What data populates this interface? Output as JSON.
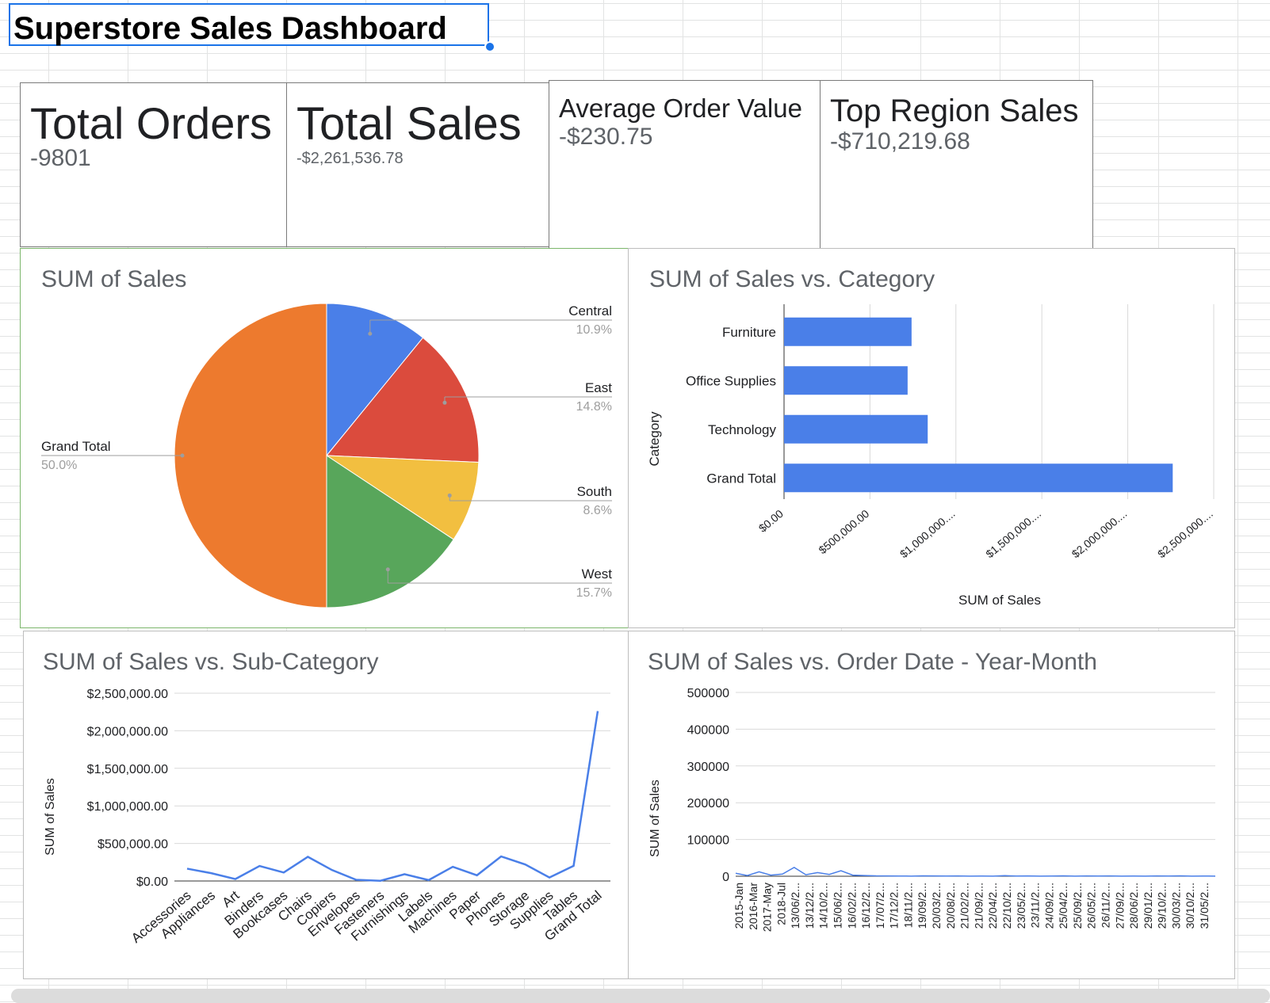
{
  "title": "Superstore Sales Dashboard",
  "kpis": [
    {
      "label": "Total Orders",
      "value": "-9801"
    },
    {
      "label": "Total Sales",
      "value": "-$2,261,536.78"
    },
    {
      "label": "Average Order Value",
      "value": "-$230.75"
    },
    {
      "label": "Top Region Sales",
      "value": "-$710,219.68"
    }
  ],
  "colors": {
    "pie": [
      "#4a7fe8",
      "#db4b3d",
      "#f2bf40",
      "#58a65b",
      "#ed7a2e"
    ],
    "bar": "#4a7fe8",
    "line": "#4a7fe8"
  },
  "chart_data": [
    {
      "type": "pie",
      "title": "SUM of Sales",
      "labels": [
        "Central",
        "East",
        "South",
        "West",
        "Grand Total"
      ],
      "values": [
        10.9,
        14.8,
        8.6,
        15.7,
        50.0
      ],
      "percent_labels": [
        "10.9%",
        "14.8%",
        "8.6%",
        "15.7%",
        "50.0%"
      ]
    },
    {
      "type": "bar",
      "orientation": "horizontal",
      "title": "SUM of Sales vs. Category",
      "categories": [
        "Furniture",
        "Office Supplies",
        "Technology",
        "Grand Total"
      ],
      "values": [
        742000,
        719000,
        836000,
        2261536.78
      ],
      "xlabel": "SUM of Sales",
      "ylabel": "Category",
      "xlim": [
        0,
        2500000
      ],
      "xticks": [
        "$0.00",
        "$500,000.00",
        "$1,000,000....",
        "$1,500,000....",
        "$2,000,000....",
        "$2,500,000...."
      ]
    },
    {
      "type": "line",
      "title": "SUM of Sales vs. Sub-Category",
      "categories": [
        "Accessories",
        "Appliances",
        "Art",
        "Binders",
        "Bookcases",
        "Chairs",
        "Copiers",
        "Envelopes",
        "Fasteners",
        "Furnishings",
        "Labels",
        "Machines",
        "Paper",
        "Phones",
        "Storage",
        "Supplies",
        "Tables",
        "Grand Total"
      ],
      "values": [
        164000,
        104000,
        26000,
        200000,
        113000,
        322000,
        146000,
        16000,
        3000,
        90000,
        12000,
        189000,
        76000,
        327000,
        220000,
        46000,
        202000,
        2261536.78
      ],
      "ylabel": "SUM of Sales",
      "ylim": [
        0,
        2500000
      ],
      "yticks": [
        "$0.00",
        "$500,000.00",
        "$1,000,000.00",
        "$1,500,000.00",
        "$2,000,000.00",
        "$2,500,000.00"
      ]
    },
    {
      "type": "line",
      "title": "SUM of Sales vs. Order Date - Year-Month",
      "ylabel": "SUM of Sales",
      "ylim": [
        0,
        500000
      ],
      "yticks": [
        "0",
        "100000",
        "200000",
        "300000",
        "400000",
        "500000"
      ],
      "x_tick_labels": [
        "2015-Jan",
        "2016-Mar",
        "2017-May",
        "2018-Jul",
        "13/06/2...",
        "13/12/2...",
        "14/10/2...",
        "15/06/2...",
        "16/02/2...",
        "16/12/2...",
        "17/07/2...",
        "17/12/2...",
        "18/11/2...",
        "19/09/2...",
        "20/03/2...",
        "20/08/2...",
        "21/02/2...",
        "21/09/2...",
        "22/04/2...",
        "22/10/2...",
        "23/05/2...",
        "23/11/2...",
        "24/09/2...",
        "25/04/2...",
        "25/09/2...",
        "26/05/2...",
        "26/11/2...",
        "27/09/2...",
        "28/06/2...",
        "29/01/2...",
        "29/10/2...",
        "30/03/2...",
        "30/10/2...",
        "31/05/2..."
      ],
      "values_approx": [
        8000,
        2000,
        12000,
        3000,
        6000,
        24000,
        4000,
        10000,
        5000,
        15000,
        3000,
        2000,
        1000,
        800,
        600,
        400,
        1200,
        900,
        500,
        700,
        300,
        600,
        400,
        1500,
        500,
        800,
        300,
        600,
        1000,
        400,
        700,
        500,
        900,
        300,
        600,
        400,
        800,
        500,
        1200,
        300,
        600,
        400
      ]
    }
  ]
}
